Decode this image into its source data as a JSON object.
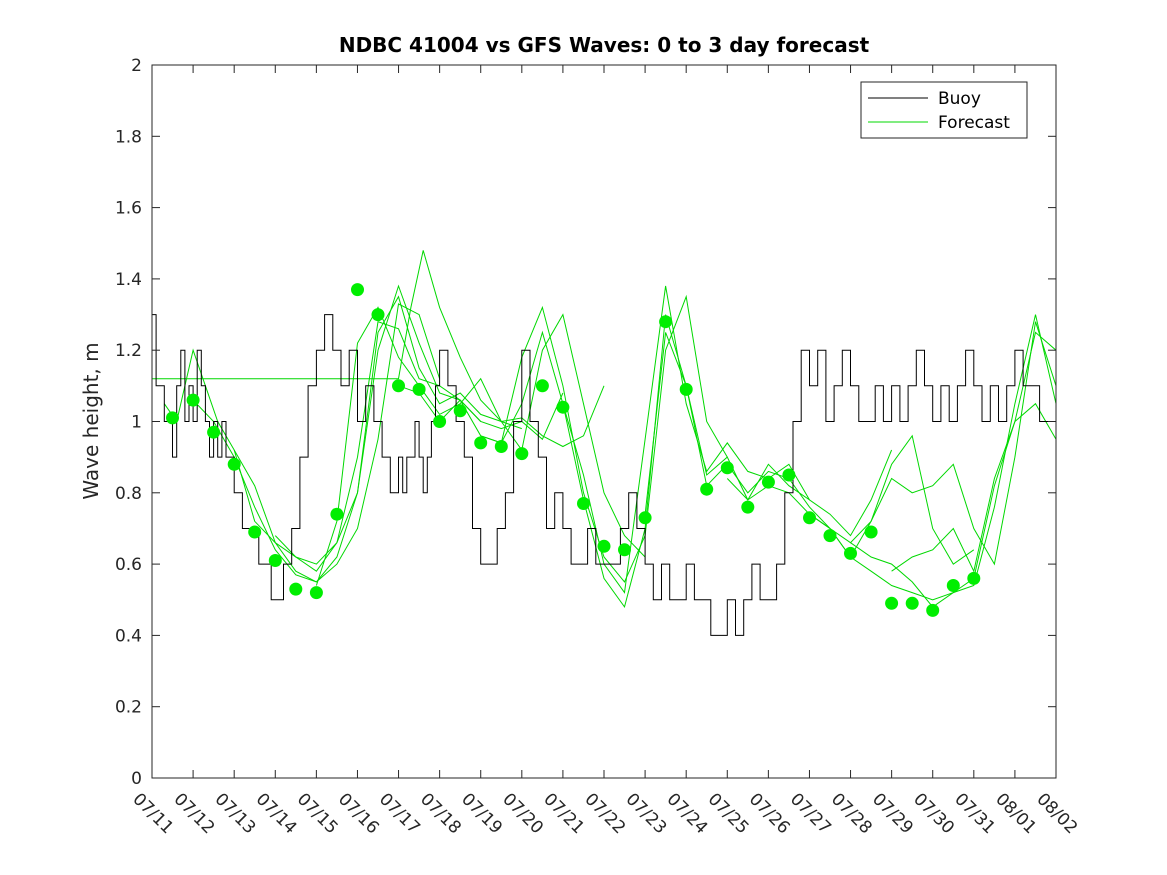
{
  "chart_data": {
    "type": "line",
    "title": "NDBC 41004 vs GFS Waves: 0 to 3 day forecast",
    "xlabel": "",
    "ylabel": "Wave height, m",
    "xlim": [
      "07/11",
      "08/02"
    ],
    "ylim": [
      0,
      2
    ],
    "yticks": [
      "0",
      "0.2",
      "0.4",
      "0.6",
      "0.8",
      "1",
      "1.2",
      "1.4",
      "1.6",
      "1.8",
      "2"
    ],
    "xticks": [
      "07/11",
      "07/12",
      "07/13",
      "07/14",
      "07/15",
      "07/16",
      "07/17",
      "07/18",
      "07/19",
      "07/20",
      "07/21",
      "07/22",
      "07/23",
      "07/24",
      "07/25",
      "07/26",
      "07/27",
      "07/28",
      "07/29",
      "07/30",
      "07/31",
      "08/01",
      "08/02"
    ],
    "grid": false,
    "legend": {
      "placement": "top-right",
      "entries": [
        {
          "label": "Buoy",
          "color": "#000000"
        },
        {
          "label": "Forecast",
          "color": "#00d800"
        }
      ]
    },
    "colors": {
      "buoy": "#000000",
      "forecast_line": "#00d800",
      "forecast_marker": "#00ee00"
    },
    "series": [
      {
        "name": "Buoy",
        "kind": "line",
        "day": [
          0,
          0.1,
          0.2,
          0.3,
          0.4,
          0.5,
          0.6,
          0.7,
          0.8,
          0.9,
          1.0,
          1.1,
          1.2,
          1.3,
          1.4,
          1.5,
          1.6,
          1.7,
          1.8,
          1.9,
          2.0,
          2.1,
          2.2,
          2.3,
          2.4,
          2.5,
          2.6,
          2.7,
          2.8,
          2.9,
          3.0,
          3.2,
          3.4,
          3.6,
          3.8,
          4.0,
          4.2,
          4.4,
          4.6,
          4.8,
          5.0,
          5.2,
          5.4,
          5.6,
          5.8,
          6.0,
          6.1,
          6.2,
          6.3,
          6.4,
          6.5,
          6.6,
          6.7,
          6.8,
          6.9,
          7.0,
          7.2,
          7.4,
          7.6,
          7.8,
          8.0,
          8.2,
          8.4,
          8.6,
          8.8,
          9.0,
          9.2,
          9.4,
          9.6,
          9.8,
          10.0,
          10.2,
          10.4,
          10.6,
          10.8,
          11.0,
          11.2,
          11.4,
          11.6,
          11.8,
          12.0,
          12.2,
          12.4,
          12.6,
          12.8,
          13.0,
          13.2,
          13.4,
          13.6,
          13.8,
          14.0,
          14.2,
          14.4,
          14.6,
          14.8,
          15.0,
          15.2,
          15.4,
          15.6,
          15.8,
          16.0,
          16.2,
          16.4,
          16.6,
          16.8,
          17.0,
          17.2,
          17.4,
          17.6,
          17.8,
          18.0,
          18.2,
          18.4,
          18.6,
          18.8,
          19.0,
          19.2,
          19.4,
          19.6,
          19.8,
          20.0,
          20.2,
          20.4,
          20.6,
          20.8,
          21.0,
          21.2,
          21.4,
          21.6,
          21.8,
          22.0
        ],
        "values": [
          1.3,
          1.1,
          1.1,
          1.0,
          1.0,
          0.9,
          1.1,
          1.2,
          1.0,
          1.1,
          1.0,
          1.2,
          1.1,
          1.0,
          0.9,
          1.0,
          0.9,
          1.0,
          0.9,
          0.9,
          0.8,
          0.8,
          0.7,
          0.7,
          0.7,
          0.7,
          0.6,
          0.6,
          0.6,
          0.5,
          0.5,
          0.6,
          0.7,
          0.9,
          1.1,
          1.2,
          1.3,
          1.2,
          1.1,
          1.2,
          1.0,
          1.1,
          1.0,
          0.9,
          0.8,
          0.9,
          0.8,
          0.9,
          0.9,
          1.0,
          0.9,
          0.8,
          0.9,
          1.0,
          1.1,
          1.2,
          1.1,
          1.0,
          0.9,
          0.7,
          0.6,
          0.6,
          0.7,
          0.8,
          1.0,
          1.2,
          1.0,
          0.9,
          0.7,
          0.8,
          0.7,
          0.6,
          0.6,
          0.7,
          0.6,
          0.6,
          0.6,
          0.7,
          0.8,
          0.7,
          0.6,
          0.5,
          0.6,
          0.5,
          0.5,
          0.6,
          0.5,
          0.5,
          0.4,
          0.4,
          0.5,
          0.4,
          0.5,
          0.6,
          0.5,
          0.5,
          0.6,
          0.8,
          1.0,
          1.2,
          1.1,
          1.2,
          1.0,
          1.1,
          1.2,
          1.1,
          1.0,
          1.0,
          1.1,
          1.0,
          1.1,
          1.0,
          1.1,
          1.2,
          1.1,
          1.0,
          1.1,
          1.0,
          1.1,
          1.2,
          1.1,
          1.0,
          1.1,
          1.0,
          1.1,
          1.2,
          1.1,
          1.1,
          1.0,
          1.0,
          1.1,
          1.1
        ]
      },
      {
        "name": "Forecast",
        "kind": "markers",
        "day": [
          0.5,
          1.0,
          1.5,
          2.0,
          2.5,
          3.0,
          3.5,
          4.0,
          4.5,
          5.0,
          5.5,
          6.0,
          6.5,
          7.0,
          7.5,
          8.0,
          8.5,
          9.0,
          9.5,
          10.0,
          10.5,
          11.0,
          11.5,
          12.0,
          12.5,
          13.0,
          13.5,
          14.0,
          14.5,
          15.0,
          15.5,
          16.0,
          16.5,
          17.0,
          17.5,
          18.0,
          18.5,
          19.0,
          19.5,
          20.0
        ],
        "values": [
          1.01,
          1.06,
          0.97,
          0.88,
          0.69,
          0.61,
          0.53,
          0.52,
          0.74,
          1.37,
          1.3,
          1.1,
          1.09,
          1.0,
          1.03,
          0.94,
          0.93,
          0.91,
          1.1,
          1.04,
          0.77,
          0.65,
          0.64,
          0.73,
          1.28,
          1.09,
          0.81,
          0.87,
          0.76,
          0.83,
          0.85,
          0.73,
          0.68,
          0.63,
          0.69,
          0.49,
          0.49,
          0.47,
          0.54,
          0.56
        ]
      }
    ],
    "forecast_tracks": [
      {
        "day": [
          0,
          6.0,
          6.3,
          6.6,
          7.0,
          7.5,
          8.0,
          8.5,
          9.0,
          9.5,
          10.0,
          10.5,
          11.0
        ],
        "values": [
          1.12,
          1.12,
          1.32,
          1.48,
          1.32,
          1.18,
          1.06,
          1.0,
          1.01,
          0.96,
          0.93,
          0.96,
          1.1
        ]
      },
      {
        "day": [
          0.3,
          0.6,
          1.0,
          1.3,
          1.6,
          2.0,
          2.5,
          3.0,
          3.5,
          4.0,
          4.5,
          5.0,
          5.5,
          6.0,
          6.5,
          7.0
        ],
        "values": [
          1.05,
          1.0,
          1.2,
          1.1,
          1.0,
          0.92,
          0.82,
          0.66,
          0.58,
          0.55,
          0.6,
          0.7,
          0.95,
          1.33,
          1.3,
          1.12
        ]
      },
      {
        "day": [
          1.0,
          1.5,
          2.0,
          2.5,
          3.0,
          3.5,
          4.0,
          4.5,
          5.0,
          5.5,
          6.0,
          6.5,
          7.0,
          7.5,
          8.0
        ],
        "values": [
          1.06,
          1.0,
          0.9,
          0.76,
          0.64,
          0.57,
          0.55,
          0.62,
          0.8,
          1.2,
          1.38,
          1.22,
          1.08,
          1.06,
          1.0
        ]
      },
      {
        "day": [
          2.0,
          2.5,
          3.0,
          3.5,
          4.0,
          4.5,
          5.0,
          5.5,
          6.0,
          6.5,
          7.0,
          7.5,
          8.0,
          8.5,
          9.0
        ],
        "values": [
          0.92,
          0.72,
          0.66,
          0.62,
          0.6,
          0.66,
          0.8,
          1.25,
          1.35,
          1.15,
          1.05,
          1.08,
          1.02,
          1.0,
          0.98
        ]
      },
      {
        "day": [
          3.0,
          3.5,
          4.0,
          4.5,
          5.0,
          5.5,
          6.0,
          6.5,
          7.0,
          7.5,
          8.0,
          8.5,
          9.0,
          9.5,
          10.0
        ],
        "values": [
          0.68,
          0.62,
          0.58,
          0.66,
          0.9,
          1.28,
          1.26,
          1.12,
          1.1,
          1.06,
          1.0,
          0.98,
          1.0,
          0.95,
          1.08
        ]
      },
      {
        "day": [
          4.0,
          4.5,
          5.0,
          5.5,
          6.0,
          6.5,
          7.0,
          7.5,
          8.0,
          8.5,
          9.0,
          9.5,
          10.0,
          10.5,
          11.0,
          11.5,
          12.0
        ],
        "values": [
          0.54,
          0.72,
          1.22,
          1.32,
          1.18,
          1.1,
          1.02,
          1.05,
          1.12,
          1.0,
          0.92,
          1.2,
          1.3,
          1.05,
          0.8,
          0.68,
          0.62
        ]
      },
      {
        "day": [
          6.0,
          6.5,
          7.0,
          7.5,
          8.0,
          8.5,
          9.0,
          9.5,
          10.0,
          10.5,
          11.0,
          11.5,
          12.0,
          12.5,
          13.0,
          13.5,
          14.0
        ],
        "values": [
          1.1,
          1.08,
          1.0,
          1.06,
          0.96,
          0.94,
          1.18,
          1.32,
          1.1,
          0.8,
          0.62,
          0.55,
          0.68,
          1.2,
          1.35,
          1.0,
          0.9
        ]
      },
      {
        "day": [
          8.0,
          8.5,
          9.0,
          9.5,
          10.0,
          10.5,
          11.0,
          11.5,
          12.0,
          12.5,
          13.0,
          13.5,
          14.0,
          14.5,
          15.0,
          15.5,
          16.0
        ],
        "values": [
          0.96,
          0.94,
          1.05,
          1.25,
          1.05,
          0.78,
          0.56,
          0.48,
          0.7,
          1.3,
          1.1,
          0.85,
          0.9,
          0.78,
          0.88,
          0.82,
          0.78
        ]
      },
      {
        "day": [
          10.0,
          10.5,
          11.0,
          11.5,
          12.0,
          12.5,
          13.0,
          13.5,
          14.0,
          14.5,
          15.0,
          15.5,
          16.0,
          16.5,
          17.0,
          17.5,
          18.0
        ],
        "values": [
          1.05,
          0.85,
          0.6,
          0.52,
          0.95,
          1.38,
          1.05,
          0.86,
          0.94,
          0.86,
          0.84,
          0.88,
          0.78,
          0.74,
          0.68,
          0.78,
          0.92
        ]
      },
      {
        "day": [
          12.0,
          12.5,
          13.0,
          13.5,
          14.0,
          14.5,
          15.0,
          15.5,
          16.0,
          16.5,
          17.0,
          17.5,
          18.0,
          18.5,
          19.0,
          19.5,
          20.0
        ],
        "values": [
          0.74,
          1.25,
          1.1,
          0.82,
          0.88,
          0.8,
          0.86,
          0.84,
          0.76,
          0.7,
          0.66,
          0.72,
          0.88,
          0.96,
          0.7,
          0.6,
          0.64
        ]
      },
      {
        "day": [
          14.0,
          14.5,
          15.0,
          15.5,
          16.0,
          16.5,
          17.0,
          17.5,
          18.0,
          18.5,
          19.0,
          19.5,
          20.0,
          20.5,
          21.0,
          21.5,
          22.0
        ],
        "values": [
          0.84,
          0.78,
          0.82,
          0.8,
          0.74,
          0.7,
          0.62,
          0.72,
          0.84,
          0.8,
          0.82,
          0.88,
          0.7,
          0.6,
          0.9,
          1.28,
          1.1
        ]
      },
      {
        "day": [
          16.0,
          16.5,
          17.0,
          17.5,
          18.0,
          18.5,
          19.0,
          19.5,
          20.0,
          20.5,
          21.0,
          21.5,
          22.0
        ],
        "values": [
          0.74,
          0.7,
          0.62,
          0.58,
          0.54,
          0.52,
          0.5,
          0.52,
          0.56,
          0.82,
          1.0,
          1.25,
          1.2
        ]
      },
      {
        "day": [
          17.0,
          17.5,
          18.0,
          18.5,
          19.0,
          19.5,
          20.0,
          20.5,
          21.0,
          21.5,
          22.0
        ],
        "values": [
          0.66,
          0.62,
          0.6,
          0.55,
          0.48,
          0.52,
          0.54,
          0.76,
          1.05,
          1.3,
          1.05
        ]
      },
      {
        "day": [
          18.0,
          18.5,
          19.0,
          19.5,
          20.0,
          20.5,
          21.0,
          21.5,
          22.0
        ],
        "values": [
          0.58,
          0.62,
          0.64,
          0.7,
          0.58,
          0.84,
          1.0,
          1.05,
          0.95
        ]
      }
    ]
  }
}
